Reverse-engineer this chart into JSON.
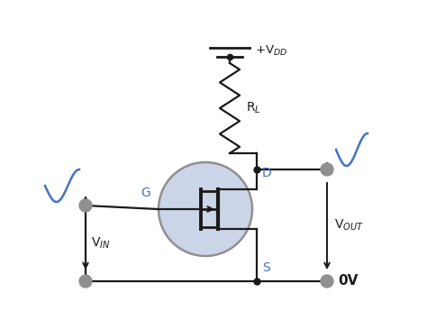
{
  "bg_color": "#ffffff",
  "line_color": "#1a1a1a",
  "blue_color": "#4472C4",
  "node_color": "#909090",
  "circle_fill": "#ccd5e8",
  "circle_edge": "#909090",
  "figsize": [
    4.74,
    3.55
  ],
  "dpi": 100,
  "labels": {
    "VDD": "+V$_{DD}$",
    "RL": "R$_L$",
    "G": "G",
    "D": "D",
    "S": "S",
    "VIN": "V$_{IN}$",
    "VOUT": "V$_{OUT}$",
    "OV": "0V"
  }
}
